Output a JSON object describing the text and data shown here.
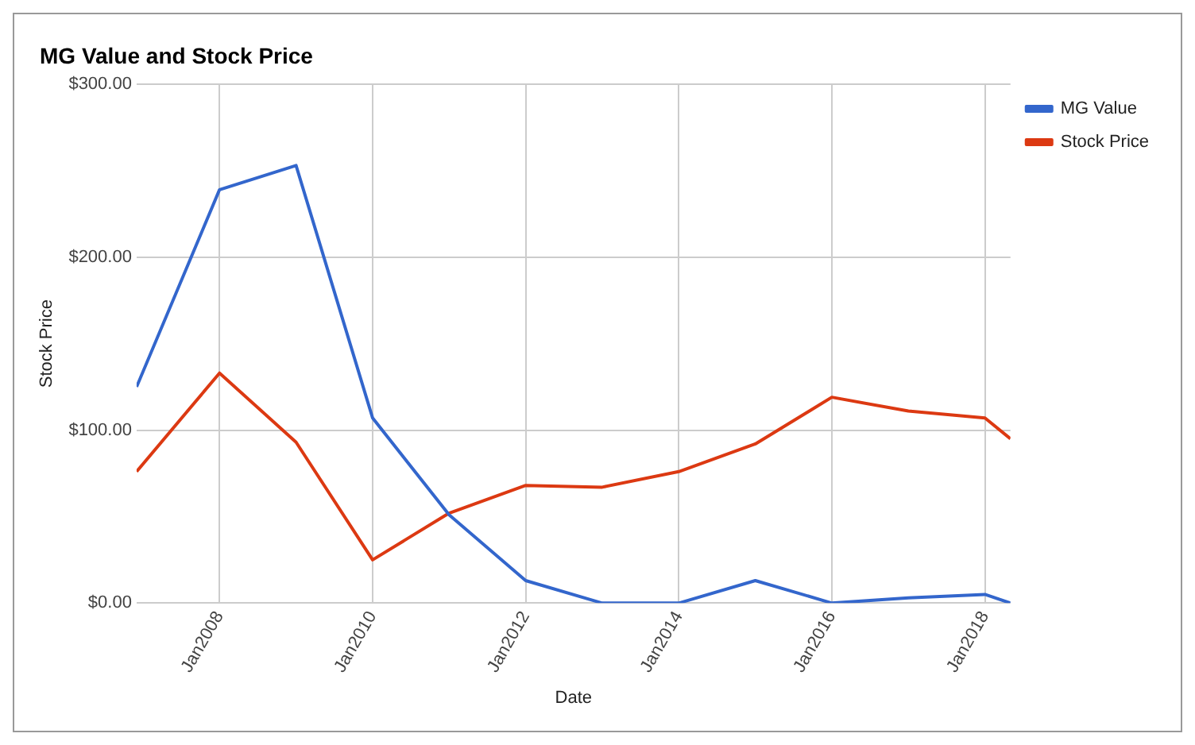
{
  "chart_data": {
    "type": "line",
    "title": "MG Value and Stock Price",
    "xlabel": "Date",
    "ylabel": "Stock Price",
    "x": [
      "2006-12",
      "2008-01",
      "2009-01",
      "2010-01",
      "2011-01",
      "2012-01",
      "2013-01",
      "2014-01",
      "2015-01",
      "2016-01",
      "2017-01",
      "2018-01",
      "2018-05"
    ],
    "series": [
      {
        "name": "MG Value",
        "color": "#3366cc",
        "values": [
          125,
          239,
          253,
          107,
          51,
          13,
          0,
          0,
          13,
          0,
          3,
          5,
          0
        ]
      },
      {
        "name": "Stock Price",
        "color": "#dc3912",
        "values": [
          76,
          133,
          93,
          25,
          52,
          68,
          67,
          76,
          92,
          119,
          111,
          107,
          95
        ]
      }
    ],
    "xlim": [
      "2006-12",
      "2018-05"
    ],
    "xticks": [
      {
        "value": "2008-01",
        "label": "Jan2008"
      },
      {
        "value": "2010-01",
        "label": "Jan2010"
      },
      {
        "value": "2012-01",
        "label": "Jan2012"
      },
      {
        "value": "2014-01",
        "label": "Jan2014"
      },
      {
        "value": "2016-01",
        "label": "Jan2016"
      },
      {
        "value": "2018-01",
        "label": "Jan2018"
      }
    ],
    "ylim": [
      0,
      300
    ],
    "yticks": [
      {
        "value": 0,
        "label": "$0.00"
      },
      {
        "value": 100,
        "label": "$100.00"
      },
      {
        "value": 200,
        "label": "$200.00"
      },
      {
        "value": 300,
        "label": "$300.00"
      }
    ],
    "grid": true,
    "legend": "top right",
    "marker": "none",
    "line_style": "solid"
  }
}
